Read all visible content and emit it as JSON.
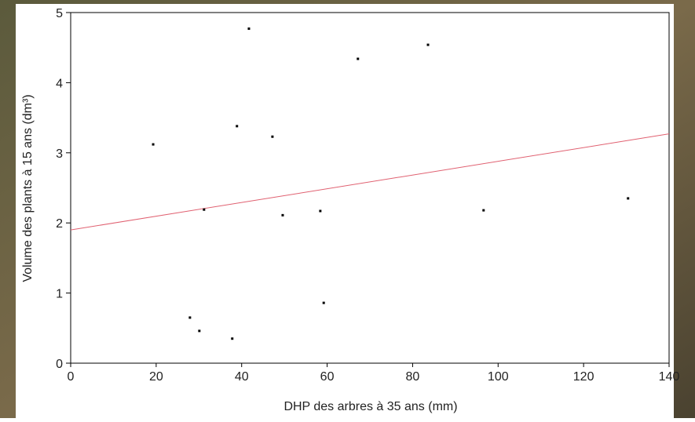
{
  "chart_data": {
    "type": "scatter",
    "x_label": "DHP des arbres à 35 ans (mm)",
    "y_label": "Volume des plants à 15 ans (dm³)",
    "series": [
      {
        "color": "#000000",
        "x": [
          19.3,
          27.9,
          30.1,
          31.2,
          37.8,
          38.9,
          41.7,
          47.2,
          49.6,
          58.4,
          59.2,
          67.2,
          83.6,
          96.6,
          130.4
        ],
        "values": [
          3.12,
          0.65,
          0.46,
          2.19,
          0.35,
          3.38,
          4.77,
          3.23,
          2.11,
          2.17,
          0.86,
          4.34,
          4.54,
          2.18,
          2.35
        ]
      }
    ],
    "trend_line": {
      "color": "#e06070",
      "x": [
        0,
        140
      ],
      "values": [
        1.9,
        3.27
      ]
    },
    "xlim": [
      0,
      140
    ],
    "xticks": [
      0,
      20,
      40,
      60,
      80,
      100,
      120,
      140
    ],
    "ylim": [
      0,
      5
    ],
    "yticks": [
      0,
      1,
      2,
      3,
      4,
      5
    ]
  }
}
